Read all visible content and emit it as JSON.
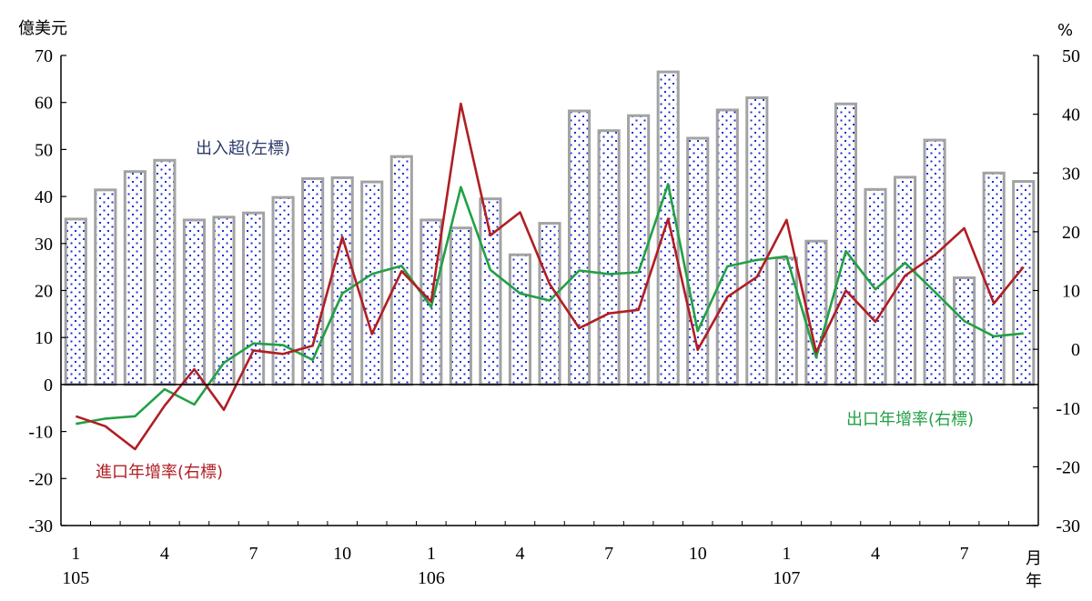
{
  "chart_data": {
    "type": "bar+line",
    "left_axis": {
      "unit": "億美元",
      "ylim": [
        -30,
        70
      ],
      "ticks": [
        "70",
        "60",
        "50",
        "40",
        "30",
        "20",
        "10",
        "0",
        "-10",
        "-20",
        "-30"
      ]
    },
    "right_axis": {
      "unit": "%",
      "ylim": [
        -30,
        50
      ],
      "ticks": [
        "50",
        "40",
        "30",
        "20",
        "10",
        "0",
        "-10",
        "-20",
        "-30"
      ]
    },
    "x_tick_labels": [
      {
        "index": 0,
        "label": "1"
      },
      {
        "index": 3,
        "label": "4"
      },
      {
        "index": 6,
        "label": "7"
      },
      {
        "index": 9,
        "label": "10"
      },
      {
        "index": 12,
        "label": "1"
      },
      {
        "index": 15,
        "label": "4"
      },
      {
        "index": 18,
        "label": "7"
      },
      {
        "index": 21,
        "label": "10"
      },
      {
        "index": 24,
        "label": "1"
      },
      {
        "index": 27,
        "label": "4"
      },
      {
        "index": 30,
        "label": "7"
      }
    ],
    "year_labels": [
      {
        "index": 0,
        "label": "105"
      },
      {
        "index": 12,
        "label": "106"
      },
      {
        "index": 24,
        "label": "107"
      }
    ],
    "x_unit_month": "月",
    "x_unit_year": "年",
    "series": [
      {
        "name": "出入超(左標)",
        "type": "bar",
        "axis": "left",
        "color": "#2233cc",
        "values": [
          35.2,
          41.4,
          45.3,
          47.7,
          35.0,
          35.6,
          36.5,
          39.8,
          43.8,
          44.0,
          43.1,
          48.5,
          35.0,
          33.3,
          39.5,
          27.6,
          34.3,
          58.2,
          54.0,
          57.2,
          66.5,
          52.4,
          58.4,
          61.0,
          26.9,
          30.5,
          59.7,
          41.5,
          44.1,
          52.0,
          22.7,
          45.0,
          43.2
        ]
      },
      {
        "name": "出口年增率(右標)",
        "type": "line",
        "axis": "right",
        "color": "#22a045",
        "values": [
          -12.7,
          -11.8,
          -11.4,
          -6.8,
          -9.4,
          -2.3,
          1.0,
          0.7,
          -1.8,
          9.5,
          12.8,
          14.2,
          7.2,
          27.6,
          13.5,
          9.5,
          8.3,
          13.4,
          12.8,
          13.1,
          28.1,
          3.1,
          14.1,
          15.2,
          15.8,
          -1.4,
          16.7,
          10.2,
          14.7,
          9.8,
          4.8,
          2.2,
          2.7
        ]
      },
      {
        "name": "進口年增率(右標)",
        "type": "line",
        "axis": "right",
        "color": "#b01e24",
        "values": [
          -11.4,
          -13.1,
          -17.0,
          -9.6,
          -3.4,
          -10.3,
          -0.2,
          -0.8,
          0.6,
          19.1,
          2.6,
          13.3,
          8.1,
          41.8,
          19.4,
          23.3,
          11.1,
          3.6,
          6.1,
          6.7,
          22.2,
          -0.1,
          8.9,
          12.3,
          22.0,
          -0.5,
          10.0,
          4.7,
          12.5,
          16.0,
          20.6,
          7.8,
          14.0
        ]
      }
    ],
    "annotations": [
      {
        "text": "出入超(左標)",
        "color": "#2b3a6b"
      },
      {
        "text": "出口年增率(右標)",
        "color": "#22a045"
      },
      {
        "text": "進口年增率(右標)",
        "color": "#b01e24"
      }
    ]
  }
}
